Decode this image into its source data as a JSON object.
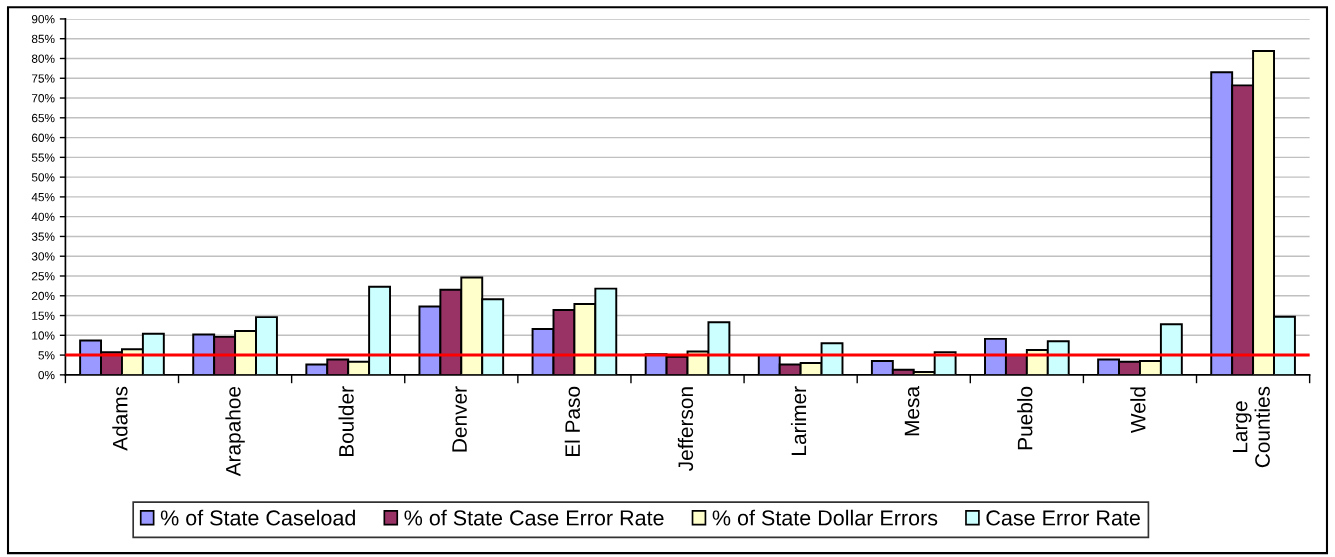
{
  "chart_data": {
    "type": "bar",
    "categories": [
      "Adams",
      "Arapahoe",
      "Boulder",
      "Denver",
      "El Paso",
      "Jefferson",
      "Larimer",
      "Mesa",
      "Pueblo",
      "Weld",
      "Large Counties"
    ],
    "series": [
      {
        "name": "% of State Caseload",
        "color": "#9999ff",
        "values": [
          8.7,
          10.2,
          2.6,
          17.3,
          11.6,
          5.2,
          5.0,
          3.5,
          9.1,
          3.9,
          76.5
        ]
      },
      {
        "name": "% of State Case Error Rate",
        "color": "#993366",
        "values": [
          5.7,
          9.6,
          3.9,
          21.5,
          16.4,
          4.6,
          2.6,
          1.3,
          5.0,
          3.3,
          73.2
        ]
      },
      {
        "name": "% of State Dollar Errors",
        "color": "#ffffcc",
        "values": [
          6.5,
          11.1,
          3.3,
          24.6,
          17.9,
          5.9,
          3.0,
          0.7,
          6.3,
          3.5,
          81.9
        ]
      },
      {
        "name": "Case Error Rate",
        "color": "#ccffff",
        "values": [
          10.4,
          14.6,
          22.3,
          19.1,
          21.8,
          13.3,
          8.0,
          5.7,
          8.5,
          12.8,
          14.7
        ]
      }
    ],
    "ylim": [
      0,
      90
    ],
    "yticks": [
      {
        "value": 0,
        "label": "0%"
      },
      {
        "value": 5,
        "label": "5%"
      },
      {
        "value": 10,
        "label": "10%"
      },
      {
        "value": 15,
        "label": "15%"
      },
      {
        "value": 20,
        "label": "20%"
      },
      {
        "value": 25,
        "label": "25%"
      },
      {
        "value": 30,
        "label": "30%"
      },
      {
        "value": 35,
        "label": "35%"
      },
      {
        "value": 40,
        "label": "40%"
      },
      {
        "value": 45,
        "label": "45%"
      },
      {
        "value": 50,
        "label": "50%"
      },
      {
        "value": 55,
        "label": "55%"
      },
      {
        "value": 60,
        "label": "60%"
      },
      {
        "value": 65,
        "label": "65%"
      },
      {
        "value": 70,
        "label": "70%"
      },
      {
        "value": 75,
        "label": "75%"
      },
      {
        "value": 80,
        "label": "80%"
      },
      {
        "value": 85,
        "label": "85%"
      },
      {
        "value": 90,
        "label": "90%"
      }
    ],
    "grid": "y",
    "legend": "bottom",
    "ref_lines": [
      {
        "axis": "y",
        "value": 5,
        "color": "#ff0000"
      }
    ]
  }
}
